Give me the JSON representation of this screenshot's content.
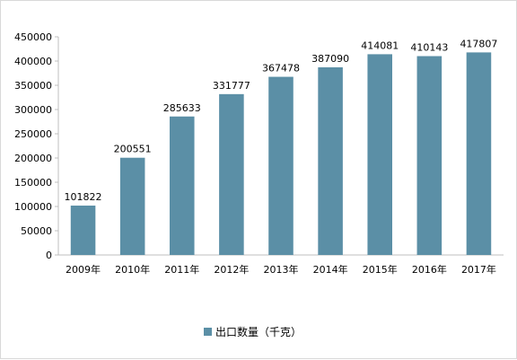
{
  "chart_data": {
    "type": "bar",
    "categories": [
      "2009年",
      "2010年",
      "2011年",
      "2012年",
      "2013年",
      "2014年",
      "2015年",
      "2016年",
      "2017年"
    ],
    "series": [
      {
        "name": "出口数量（千克）",
        "values": [
          101822,
          200551,
          285633,
          331777,
          367478,
          387090,
          414081,
          410143,
          417807
        ],
        "color": "#5b8fa6"
      }
    ],
    "y_ticks": [
      "0",
      "50000",
      "100000",
      "150000",
      "200000",
      "250000",
      "300000",
      "350000",
      "400000",
      "450000"
    ],
    "ylim": [
      0,
      450000
    ],
    "grid": false,
    "data_labels": true,
    "legend_position": "bottom"
  }
}
